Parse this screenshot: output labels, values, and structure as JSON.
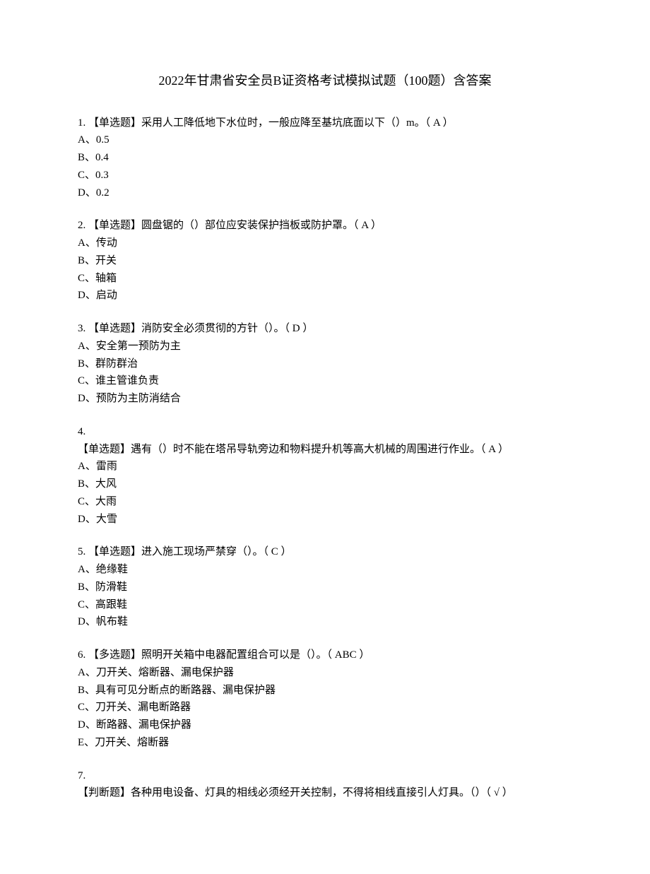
{
  "title": "2022年甘肃省安全员B证资格考试模拟试题（100题）含答案",
  "questions": [
    {
      "num": "1.",
      "text": "【单选题】采用人工降低地下水位时，一般应降至基坑底面以下（）m。（  A  ）",
      "options": [
        "A、0.5",
        "B、0.4",
        "C、0.3",
        "D、0.2"
      ]
    },
    {
      "num": "2.",
      "text": "【单选题】圆盘锯的（）部位应安装保护挡板或防护罩。（  A  ）",
      "options": [
        "A、传动",
        "B、开关",
        "C、轴箱",
        "D、启动"
      ]
    },
    {
      "num": "3.",
      "text": "【单选题】消防安全必须贯彻的方针（）。（  D  ）",
      "options": [
        "A、安全第一预防为主",
        "B、群防群治",
        "C、谁主管谁负责",
        "D、预防为主防消结合"
      ]
    },
    {
      "num": "4.",
      "text": "【单选题】遇有（）时不能在塔吊导轨旁边和物料提升机等高大机械的周围进行作业。（  A  ）",
      "options": [
        "A、雷雨",
        "B、大风",
        "C、大雨",
        "D、大雪"
      ],
      "multiline": true
    },
    {
      "num": "5.",
      "text": "【单选题】进入施工现场严禁穿（）。（  C  ）",
      "options": [
        "A、绝缘鞋",
        "B、防滑鞋",
        "C、高跟鞋",
        "D、帆布鞋"
      ]
    },
    {
      "num": "6.",
      "text": "【多选题】照明开关箱中电器配置组合可以是（）。（  ABC  ）",
      "options": [
        "A、刀开关、熔断器、漏电保护器",
        "B、具有可见分断点的断路器、漏电保护器",
        "C、刀开关、漏电断路器",
        "D、断路器、漏电保护器",
        "E、刀开关、熔断器"
      ]
    },
    {
      "num": "7.",
      "text": "【判断题】各种用电设备、灯具的相线必须经开关控制，不得将相线直接引人灯具。（）（  √  ）",
      "options": [],
      "multiline": true
    }
  ]
}
